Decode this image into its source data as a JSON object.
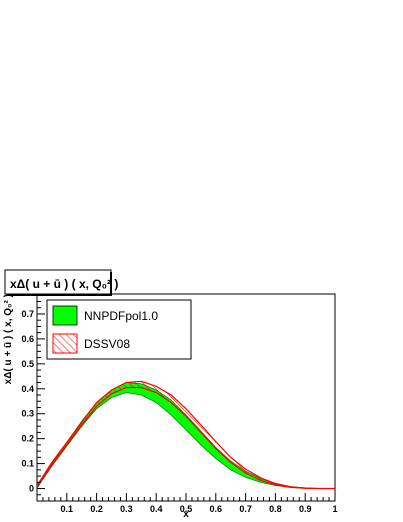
{
  "chart_data": {
    "type": "area",
    "title": "xΔ( u + ū ) ( x, Q₀² )",
    "xlabel": "x",
    "ylabel": "xΔ( u + ū ) ( x, Q₀² )",
    "xlim": [
      0,
      1
    ],
    "ylim": [
      -0.05,
      0.78
    ],
    "xticks": [
      "0.1",
      "0.2",
      "0.3",
      "0.4",
      "0.5",
      "0.6",
      "0.7",
      "0.8",
      "0.9",
      "1"
    ],
    "yticks": [
      "0",
      "0.1",
      "0.2",
      "0.3",
      "0.4",
      "0.5",
      "0.6",
      "0.7"
    ],
    "legend_position": "top-left",
    "grid": false,
    "series": [
      {
        "name": "NNPDFpol1.0",
        "style": "filled band",
        "fill_color": "#00ff00",
        "x": [
          0.0,
          0.01,
          0.05,
          0.1,
          0.15,
          0.2,
          0.25,
          0.3,
          0.35,
          0.4,
          0.45,
          0.5,
          0.55,
          0.6,
          0.65,
          0.7,
          0.75,
          0.8,
          0.85,
          0.9,
          0.95,
          1.0
        ],
        "lower": [
          0.0,
          0.02,
          0.09,
          0.17,
          0.25,
          0.32,
          0.365,
          0.385,
          0.375,
          0.345,
          0.295,
          0.235,
          0.175,
          0.12,
          0.075,
          0.045,
          0.025,
          0.012,
          0.005,
          0.001,
          0.0,
          0.0
        ],
        "upper": [
          0.0,
          0.025,
          0.1,
          0.185,
          0.27,
          0.345,
          0.395,
          0.425,
          0.42,
          0.395,
          0.355,
          0.295,
          0.23,
          0.165,
          0.11,
          0.07,
          0.04,
          0.02,
          0.008,
          0.002,
          0.0,
          0.0
        ]
      },
      {
        "name": "DSSV08",
        "style": "hatched band",
        "line_color": "#ff0000",
        "x": [
          0.0,
          0.01,
          0.05,
          0.1,
          0.15,
          0.2,
          0.25,
          0.3,
          0.35,
          0.4,
          0.45,
          0.5,
          0.55,
          0.6,
          0.65,
          0.7,
          0.75,
          0.8,
          0.85,
          0.9,
          0.95,
          1.0
        ],
        "lower": [
          0.005,
          0.025,
          0.095,
          0.175,
          0.255,
          0.33,
          0.38,
          0.405,
          0.405,
          0.385,
          0.345,
          0.29,
          0.225,
          0.16,
          0.105,
          0.062,
          0.033,
          0.015,
          0.005,
          0.001,
          0.0,
          0.0
        ],
        "upper": [
          0.01,
          0.03,
          0.105,
          0.185,
          0.265,
          0.345,
          0.395,
          0.425,
          0.43,
          0.41,
          0.375,
          0.32,
          0.255,
          0.188,
          0.125,
          0.078,
          0.043,
          0.02,
          0.007,
          0.002,
          0.0,
          0.0
        ]
      }
    ]
  }
}
